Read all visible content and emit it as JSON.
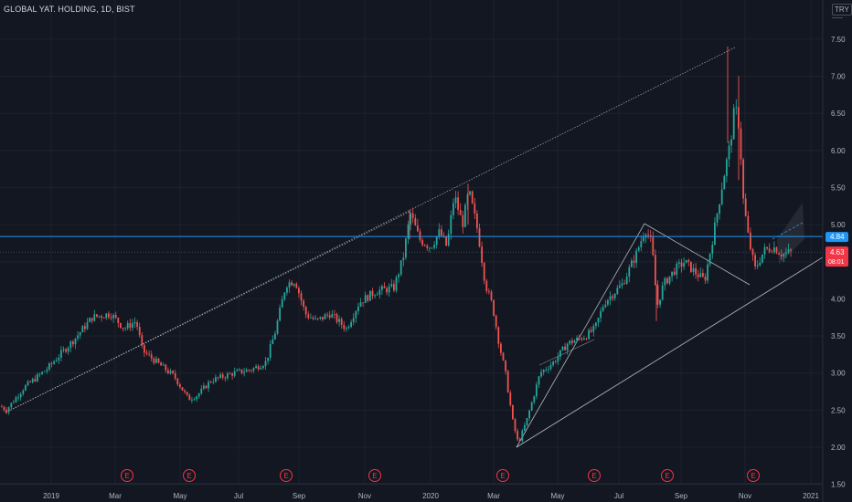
{
  "header": {
    "symbol_title": "GLOBAL YAT. HOLDING, 1D, BIST",
    "currency": "TRY"
  },
  "colors": {
    "background": "#131722",
    "up": "#26a69a",
    "down": "#ef5350",
    "hline": "#2196f3",
    "last_price_badge": "#f23645",
    "trendline": "#d1d4dc",
    "earnings_marker": "#f23645"
  },
  "chart_data": {
    "type": "candlestick",
    "symbol": "GLOBAL YAT. HOLDING",
    "interval": "1D",
    "exchange": "BIST",
    "ylim": [
      1.5,
      7.75
    ],
    "y_ticks": [
      "7.50",
      "7.00",
      "6.50",
      "6.00",
      "5.50",
      "5.00",
      "4.50",
      "4.00",
      "3.50",
      "3.00",
      "2.50",
      "2.00",
      "1.50"
    ],
    "x_ticks": [
      "2019",
      "Mar",
      "May",
      "Jul",
      "Sep",
      "Nov",
      "2020",
      "Mar",
      "May",
      "Jul",
      "Sep",
      "Nov",
      "2021"
    ],
    "price_path": [
      [
        0,
        2.55
      ],
      [
        6,
        2.5
      ],
      [
        25,
        2.8
      ],
      [
        50,
        3.05
      ],
      [
        80,
        3.45
      ],
      [
        100,
        3.75
      ],
      [
        120,
        3.8
      ],
      [
        135,
        3.6
      ],
      [
        148,
        3.7
      ],
      [
        155,
        3.3
      ],
      [
        170,
        3.15
      ],
      [
        190,
        2.95
      ],
      [
        205,
        2.65
      ],
      [
        215,
        2.7
      ],
      [
        230,
        2.9
      ],
      [
        255,
        3.0
      ],
      [
        275,
        3.05
      ],
      [
        290,
        3.15
      ],
      [
        300,
        3.55
      ],
      [
        312,
        4.2
      ],
      [
        322,
        4.25
      ],
      [
        333,
        3.8
      ],
      [
        345,
        3.7
      ],
      [
        360,
        3.8
      ],
      [
        378,
        3.6
      ],
      [
        392,
        3.95
      ],
      [
        410,
        4.1
      ],
      [
        430,
        4.15
      ],
      [
        440,
        4.55
      ],
      [
        448,
        5.15
      ],
      [
        458,
        4.8
      ],
      [
        470,
        4.7
      ],
      [
        480,
        4.9
      ],
      [
        488,
        4.7
      ],
      [
        496,
        5.4
      ],
      [
        505,
        5.0
      ],
      [
        512,
        5.45
      ],
      [
        522,
        4.9
      ],
      [
        530,
        4.2
      ],
      [
        538,
        3.9
      ],
      [
        545,
        3.4
      ],
      [
        552,
        3.0
      ],
      [
        560,
        2.35
      ],
      [
        566,
        2.05
      ],
      [
        575,
        2.35
      ],
      [
        590,
        3.0
      ],
      [
        605,
        3.15
      ],
      [
        620,
        3.4
      ],
      [
        640,
        3.5
      ],
      [
        650,
        3.6
      ],
      [
        660,
        3.95
      ],
      [
        680,
        4.2
      ],
      [
        695,
        4.6
      ],
      [
        705,
        4.95
      ],
      [
        712,
        4.75
      ],
      [
        718,
        3.9
      ],
      [
        725,
        4.2
      ],
      [
        738,
        4.4
      ],
      [
        748,
        4.5
      ],
      [
        760,
        4.35
      ],
      [
        770,
        4.25
      ],
      [
        780,
        4.9
      ],
      [
        790,
        5.6
      ],
      [
        798,
        6.1
      ],
      [
        803,
        6.6
      ],
      [
        808,
        6.3
      ],
      [
        812,
        5.35
      ],
      [
        818,
        4.8
      ],
      [
        825,
        4.4
      ],
      [
        835,
        4.65
      ],
      [
        845,
        4.7
      ],
      [
        855,
        4.6
      ],
      [
        865,
        4.63
      ]
    ],
    "horizontal_line": {
      "price": 4.84,
      "label": "4.84"
    },
    "last_price": {
      "price": 4.63,
      "label": "4.63",
      "countdown": "08:01"
    },
    "earnings_markers": {
      "symbol": "E",
      "count": 8
    },
    "annotations": [
      "rising trendline with parallel channel line",
      "triangle pattern (Mar–Oct 2020)",
      "shaded projected channel (Nov–Dec 2020)"
    ]
  }
}
